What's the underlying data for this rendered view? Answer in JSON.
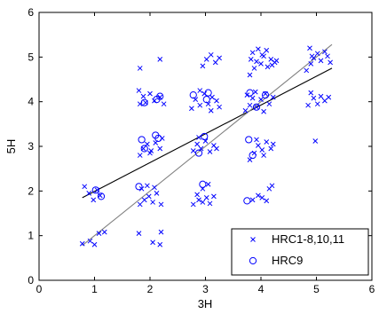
{
  "chart_data": {
    "type": "scatter",
    "xlabel": "3H",
    "ylabel": "5H",
    "xlim": [
      0,
      6
    ],
    "ylim": [
      0,
      6
    ],
    "xticks": [
      "0",
      "1",
      "2",
      "3",
      "4",
      "5",
      "6"
    ],
    "yticks": [
      "0",
      "1",
      "2",
      "3",
      "4",
      "5",
      "6"
    ],
    "grid": false,
    "legend_position": "bottom-right",
    "series": [
      {
        "name": "HRC1-8,10,11",
        "marker": "x",
        "color": "#0000ff",
        "points": [
          [
            0.78,
            0.82
          ],
          [
            0.92,
            0.88
          ],
          [
            1.0,
            0.8
          ],
          [
            1.08,
            1.05
          ],
          [
            1.18,
            1.08
          ],
          [
            0.82,
            2.1
          ],
          [
            0.9,
            1.95
          ],
          [
            0.98,
            1.8
          ],
          [
            1.1,
            1.9
          ],
          [
            1.05,
            2.02
          ],
          [
            1.8,
            1.05
          ],
          [
            2.05,
            0.85
          ],
          [
            2.18,
            0.8
          ],
          [
            2.2,
            1.08
          ],
          [
            1.82,
            1.7
          ],
          [
            1.9,
            1.8
          ],
          [
            1.98,
            1.88
          ],
          [
            2.05,
            1.75
          ],
          [
            2.12,
            1.95
          ],
          [
            2.2,
            1.7
          ],
          [
            1.85,
            2.05
          ],
          [
            1.95,
            2.12
          ],
          [
            2.08,
            2.08
          ],
          [
            1.82,
            2.8
          ],
          [
            1.88,
            2.95
          ],
          [
            1.95,
            3.05
          ],
          [
            2.02,
            2.9
          ],
          [
            2.1,
            3.08
          ],
          [
            2.18,
            2.95
          ],
          [
            2.22,
            3.18
          ],
          [
            2.0,
            2.85
          ],
          [
            1.82,
            3.95
          ],
          [
            1.88,
            4.12
          ],
          [
            1.92,
            3.98
          ],
          [
            2.0,
            4.18
          ],
          [
            2.08,
            4.02
          ],
          [
            2.18,
            4.1
          ],
          [
            2.25,
            3.95
          ],
          [
            1.8,
            4.25
          ],
          [
            1.82,
            4.75
          ],
          [
            2.18,
            4.95
          ],
          [
            2.78,
            1.7
          ],
          [
            2.88,
            1.8
          ],
          [
            2.95,
            1.75
          ],
          [
            3.02,
            1.85
          ],
          [
            3.08,
            1.72
          ],
          [
            3.15,
            1.88
          ],
          [
            2.85,
            1.92
          ],
          [
            2.95,
            2.05
          ],
          [
            3.05,
            2.15
          ],
          [
            2.78,
            2.9
          ],
          [
            2.85,
            3.05
          ],
          [
            2.92,
            2.95
          ],
          [
            3.0,
            3.12
          ],
          [
            3.08,
            2.88
          ],
          [
            3.15,
            3.02
          ],
          [
            3.2,
            2.95
          ],
          [
            2.88,
            3.2
          ],
          [
            2.75,
            3.85
          ],
          [
            2.82,
            4.05
          ],
          [
            2.9,
            3.92
          ],
          [
            2.98,
            4.18
          ],
          [
            3.05,
            3.95
          ],
          [
            3.12,
            4.1
          ],
          [
            3.2,
            4.02
          ],
          [
            3.25,
            3.88
          ],
          [
            2.9,
            4.25
          ],
          [
            3.1,
            3.8
          ],
          [
            2.95,
            4.8
          ],
          [
            3.02,
            4.95
          ],
          [
            3.1,
            5.05
          ],
          [
            3.18,
            4.88
          ],
          [
            3.25,
            4.98
          ],
          [
            3.85,
            1.8
          ],
          [
            3.95,
            1.9
          ],
          [
            4.02,
            1.85
          ],
          [
            4.1,
            1.78
          ],
          [
            4.15,
            2.05
          ],
          [
            4.2,
            2.12
          ],
          [
            3.8,
            2.7
          ],
          [
            3.88,
            2.85
          ],
          [
            3.95,
            3.02
          ],
          [
            4.02,
            2.92
          ],
          [
            4.1,
            3.1
          ],
          [
            4.18,
            2.95
          ],
          [
            4.22,
            3.05
          ],
          [
            3.92,
            3.15
          ],
          [
            4.05,
            2.8
          ],
          [
            3.72,
            3.8
          ],
          [
            3.8,
            3.92
          ],
          [
            3.85,
            4.08
          ],
          [
            3.92,
            3.88
          ],
          [
            4.0,
            4.05
          ],
          [
            4.08,
            4.18
          ],
          [
            4.15,
            3.95
          ],
          [
            4.22,
            4.1
          ],
          [
            3.9,
            4.22
          ],
          [
            4.05,
            3.78
          ],
          [
            3.75,
            4.15
          ],
          [
            3.8,
            4.6
          ],
          [
            3.88,
            4.75
          ],
          [
            3.92,
            4.9
          ],
          [
            4.0,
            4.85
          ],
          [
            4.05,
            5.02
          ],
          [
            4.12,
            4.78
          ],
          [
            4.18,
            4.95
          ],
          [
            4.25,
            4.88
          ],
          [
            3.85,
            5.1
          ],
          [
            3.95,
            5.18
          ],
          [
            4.02,
            5.05
          ],
          [
            4.1,
            5.15
          ],
          [
            4.2,
            4.82
          ],
          [
            4.28,
            4.92
          ],
          [
            3.82,
            4.95
          ],
          [
            4.98,
            3.12
          ],
          [
            4.85,
            3.92
          ],
          [
            4.95,
            4.08
          ],
          [
            5.02,
            3.95
          ],
          [
            5.08,
            4.12
          ],
          [
            5.15,
            4.02
          ],
          [
            5.22,
            4.1
          ],
          [
            4.9,
            4.2
          ],
          [
            4.82,
            4.7
          ],
          [
            4.9,
            4.85
          ],
          [
            4.95,
            4.98
          ],
          [
            5.02,
            5.08
          ],
          [
            5.08,
            4.92
          ],
          [
            5.15,
            5.12
          ],
          [
            5.2,
            5.02
          ],
          [
            5.25,
            4.88
          ],
          [
            4.88,
            5.2
          ],
          [
            4.92,
            5.02
          ]
        ]
      },
      {
        "name": "HRC9",
        "marker": "o",
        "color": "#0000ff",
        "points": [
          [
            1.02,
            2.02
          ],
          [
            1.12,
            1.88
          ],
          [
            1.8,
            2.1
          ],
          [
            1.85,
            3.15
          ],
          [
            1.9,
            2.95
          ],
          [
            2.1,
            3.25
          ],
          [
            2.15,
            3.18
          ],
          [
            2.12,
            4.05
          ],
          [
            2.18,
            4.12
          ],
          [
            1.9,
            3.98
          ],
          [
            2.78,
            4.15
          ],
          [
            3.05,
            4.2
          ],
          [
            3.02,
            4.05
          ],
          [
            2.88,
            2.85
          ],
          [
            2.98,
            3.22
          ],
          [
            2.95,
            2.15
          ],
          [
            3.75,
            1.78
          ],
          [
            3.85,
            2.8
          ],
          [
            3.78,
            3.15
          ],
          [
            3.8,
            4.2
          ],
          [
            3.92,
            3.88
          ],
          [
            4.08,
            4.15
          ]
        ]
      }
    ],
    "fit_lines": [
      {
        "color": "#000000",
        "x": [
          0.78,
          5.28
        ],
        "y": [
          1.85,
          4.75
        ]
      },
      {
        "color": "#808080",
        "x": [
          0.78,
          5.28
        ],
        "y": [
          0.78,
          5.28
        ]
      }
    ]
  }
}
